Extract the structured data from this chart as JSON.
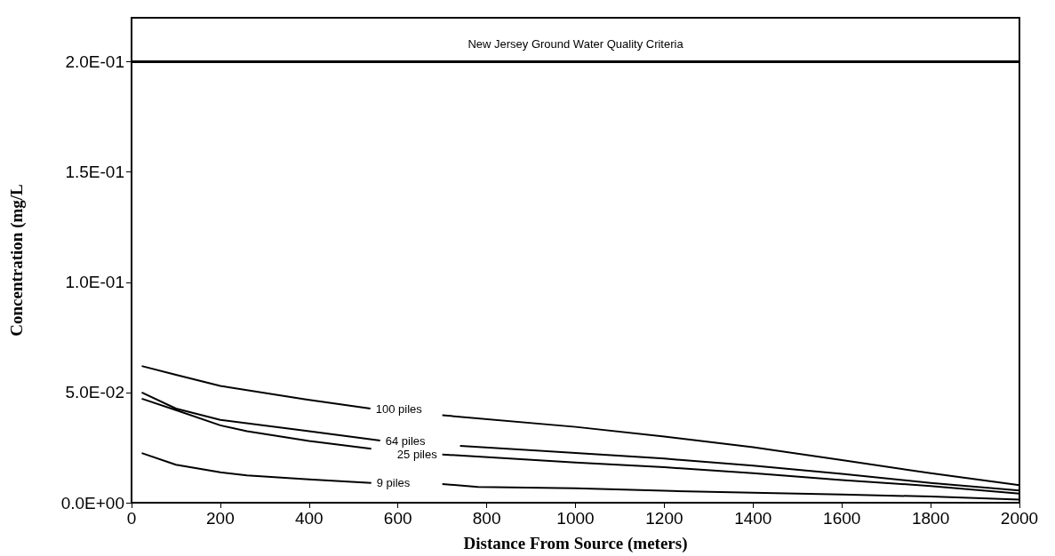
{
  "chart_data": {
    "type": "line",
    "xlabel": "Distance From Source (meters)",
    "ylabel": "Concentration (mg/L",
    "xlim": [
      0,
      2000
    ],
    "xticks": [
      0,
      200,
      400,
      600,
      800,
      1000,
      1200,
      1400,
      1600,
      1800,
      2000
    ],
    "ylim": [
      0,
      0.22
    ],
    "yticks": [
      {
        "value": 0,
        "label": "0.0E+00"
      },
      {
        "value": 0.05,
        "label": "5.0E-02"
      },
      {
        "value": 0.1,
        "label": "1.0E-01"
      },
      {
        "value": 0.15,
        "label": "1.5E-01"
      },
      {
        "value": 0.2,
        "label": "2.0E-01"
      }
    ],
    "grid": false,
    "legend": false,
    "marker": "none",
    "line_style": "solid",
    "ref_lines": [
      {
        "axis": "y",
        "value": 0.2,
        "label": "New Jersey Ground Water Quality Criteria",
        "color": "#000000"
      }
    ],
    "series": [
      {
        "name": "100 piles",
        "color": "#000000",
        "x": [
          23,
          100,
          200,
          393,
          538,
          620,
          700,
          1000,
          1200,
          1400,
          1600,
          1800,
          2000
        ],
        "values": [
          0.062,
          0.058,
          0.053,
          0.0468,
          0.0427,
          null,
          0.0397,
          0.0344,
          0.03,
          0.0252,
          0.0193,
          0.0134,
          0.008
        ]
      },
      {
        "name": "64 piles",
        "color": "#000000",
        "x": [
          23,
          100,
          200,
          400,
          560,
          650,
          740,
          1000,
          1200,
          1400,
          1600,
          1800,
          2000
        ],
        "values": [
          0.05,
          0.0427,
          0.0376,
          0.0324,
          0.0282,
          null,
          0.0258,
          0.0226,
          0.02,
          0.0168,
          0.0131,
          0.009,
          0.0055
        ]
      },
      {
        "name": "25 piles",
        "color": "#000000",
        "x": [
          23,
          100,
          200,
          260,
          400,
          540,
          620,
          700,
          1000,
          1200,
          1400,
          1600,
          1800,
          2000
        ],
        "values": [
          0.0472,
          0.042,
          0.0351,
          0.0324,
          0.028,
          0.0245,
          null,
          0.0219,
          0.0182,
          0.0161,
          0.0134,
          0.0103,
          0.0076,
          0.0041
        ]
      },
      {
        "name": "9 piles",
        "color": "#000000",
        "x": [
          23,
          100,
          200,
          260,
          400,
          540,
          620,
          700,
          780,
          1000,
          1200,
          1400,
          1600,
          1800,
          2000
        ],
        "values": [
          0.0225,
          0.0172,
          0.0138,
          0.0124,
          0.0106,
          0.009,
          null,
          0.0085,
          0.0072,
          0.0065,
          0.0054,
          0.0045,
          0.0037,
          0.0028,
          0.0014
        ]
      }
    ]
  }
}
